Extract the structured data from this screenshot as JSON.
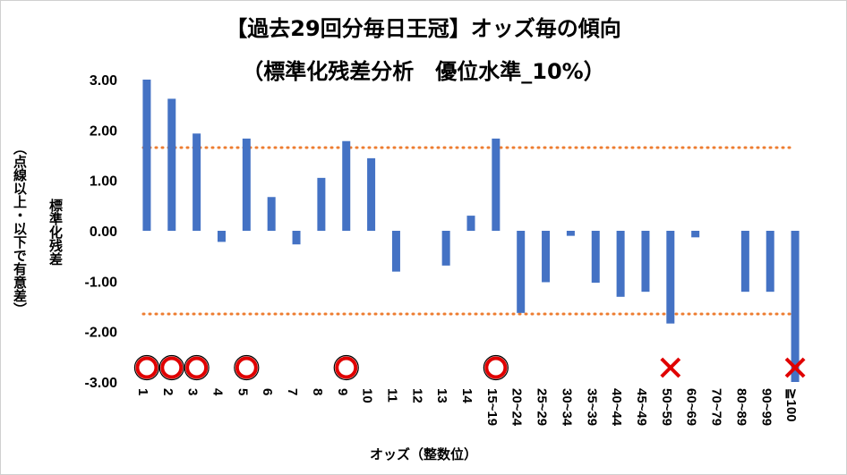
{
  "chart_data": {
    "type": "bar",
    "title": "【過去29回分毎日王冠】オッズ毎の傾向",
    "subtitle": "（標準化残差分析　優位水準_10%）",
    "ylabel_line1": "標準化残差",
    "ylabel_line2": "（点線以上・以下で有意差）",
    "xlabel": "オッズ（整数位）",
    "ylim": [
      -3.0,
      3.0
    ],
    "yticks": [
      "3.00",
      "2.00",
      "1.00",
      "0.00",
      "-1.00",
      "-2.00",
      "-3.00"
    ],
    "ytick_values": [
      3,
      2,
      1,
      0,
      -1,
      -2,
      -3
    ],
    "categories": [
      "1",
      "2",
      "3",
      "4",
      "5",
      "6",
      "7",
      "8",
      "9",
      "10",
      "11",
      "12",
      "13",
      "14",
      "15~19",
      "20~24",
      "25~29",
      "30~34",
      "35~39",
      "40~44",
      "45~49",
      "50~59",
      "60~69",
      "70~79",
      "80~89",
      "90~99",
      "≧100"
    ],
    "series": [
      {
        "values": [
          3.0,
          2.62,
          1.93,
          -0.22,
          1.83,
          0.67,
          -0.27,
          1.05,
          1.78,
          1.44,
          -0.81,
          0.0,
          -0.69,
          0.3,
          1.83,
          -1.63,
          -1.02,
          -0.1,
          -1.03,
          -1.31,
          -1.21,
          -1.84,
          -0.13,
          0.0,
          -1.21,
          -1.21,
          -3.0
        ]
      }
    ],
    "threshold_lines": [
      1.65,
      -1.65
    ],
    "markers": [
      {
        "category": "1",
        "symbol": "○"
      },
      {
        "category": "2",
        "symbol": "○"
      },
      {
        "category": "3",
        "symbol": "○"
      },
      {
        "category": "5",
        "symbol": "○"
      },
      {
        "category": "9",
        "symbol": "○"
      },
      {
        "category": "15~19",
        "symbol": "○"
      },
      {
        "category": "50~59",
        "symbol": "×"
      },
      {
        "category": "≧100",
        "symbol": "×"
      }
    ],
    "grid": false,
    "colors": {
      "bar": "#4472C4",
      "threshold": "#ED7D31",
      "marker": "#E00000"
    }
  }
}
